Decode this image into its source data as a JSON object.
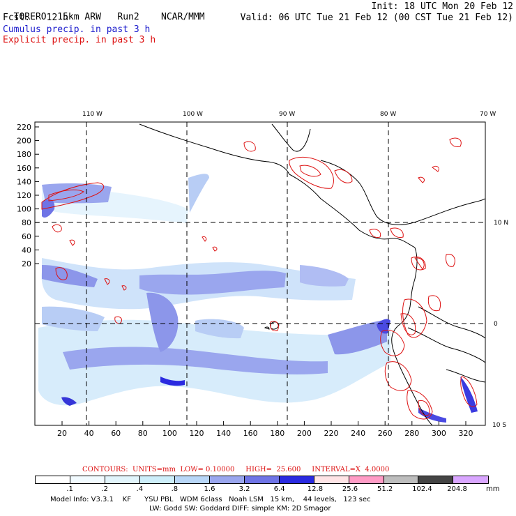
{
  "header": {
    "model": "TORERO",
    "resolution": "15km ARW",
    "run": "Run2",
    "org": "NCAR/MMM",
    "init": "Init: 18 UTC Mon 20 Feb 12",
    "fcst_label": "Fcst.",
    "fcst_value": "12 h",
    "valid": "Valid: 06 UTC Tue 21 Feb 12 (00 CST Tue 21 Feb 12)",
    "cumulus": "Cumulus precip. in past 3 h",
    "explicit": "Explicit precip. in past 3 h"
  },
  "colors": {
    "cumulus": "#1a1acc",
    "explicit": "#dd1111",
    "coast": "#000000"
  },
  "lon_labels": [
    "110 W",
    "100 W",
    "90 W",
    "80 W",
    "70 W"
  ],
  "lat_labels": [
    "10 N",
    "0",
    "10 S"
  ],
  "y_ticks": [
    "220",
    "200",
    "180",
    "160",
    "140",
    "120",
    "100",
    "80",
    "60",
    "40",
    "20"
  ],
  "x_ticks": [
    "20",
    "40",
    "60",
    "80",
    "100",
    "120",
    "140",
    "160",
    "180",
    "200",
    "220",
    "240",
    "260",
    "280",
    "300",
    "320"
  ],
  "contours_line": "CONTOURS:  UNITS=mm  LOW= 0.10000     HIGH=  25.600     INTERVAL=X  4.0000",
  "colorbar": {
    "labels": [
      ".1",
      ".2",
      ".4",
      ".8",
      "1.6",
      "3.2",
      "6.4",
      "12.8",
      "25.6",
      "51.2",
      "102.4",
      "204.8"
    ],
    "unit": "mm",
    "colors": [
      "#ffffff",
      "#f2fbff",
      "#e2f5fc",
      "#cdeefa",
      "#b8d6f7",
      "#9aa6ee",
      "#6f74e6",
      "#2a2ae0",
      "#ffe4e6",
      "#ff9cc6",
      "#bdbdbd",
      "#444444",
      "#d9a6ff"
    ]
  },
  "footer": {
    "line1": "Model Info: V3.3.1    KF      YSU PBL   WDM 6class   Noah LSM   15 km,    44 levels,   123 sec",
    "line2": "LW: Godd SW: Goddard DIFF: simple KM: 2D Smagor"
  }
}
